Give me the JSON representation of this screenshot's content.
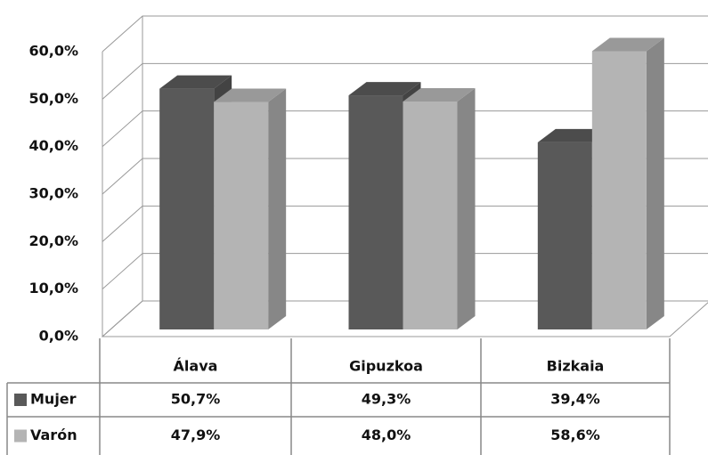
{
  "chart_data": {
    "type": "bar",
    "categories": [
      "Álava",
      "Gipuzkoa",
      "Bizkaia"
    ],
    "series": [
      {
        "name": "Mujer",
        "color": "#595959",
        "values": [
          50.7,
          49.3,
          39.4
        ],
        "value_labels": [
          "50,7%",
          "49,3%",
          "39,4%"
        ]
      },
      {
        "name": "Varón",
        "color": "#b4b4b4",
        "values": [
          47.9,
          48.0,
          58.6
        ],
        "value_labels": [
          "47,9%",
          "48,0%",
          "58,6%"
        ]
      }
    ],
    "ylim": [
      0,
      60
    ],
    "yticks": [
      {
        "value": 0,
        "label": "0,0%"
      },
      {
        "value": 10,
        "label": "10,0%"
      },
      {
        "value": 20,
        "label": "20,0%"
      },
      {
        "value": 30,
        "label": "30,0%"
      },
      {
        "value": 40,
        "label": "40,0%"
      },
      {
        "value": 50,
        "label": "50,0%"
      },
      {
        "value": 60,
        "label": "60,0%"
      }
    ],
    "grid": true
  }
}
